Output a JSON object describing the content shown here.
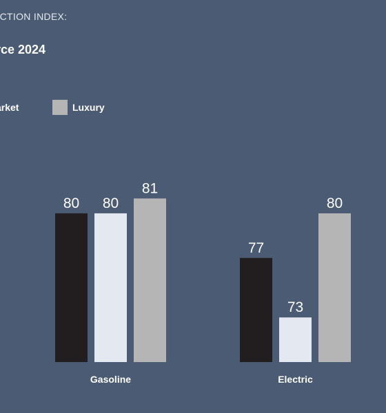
{
  "chart_data": {
    "type": "bar",
    "title_lines": [
      "ACTION INDEX:",
      "rce 2024"
    ],
    "categories": [
      "Gasoline",
      "Electric"
    ],
    "series": [
      {
        "name": "arket",
        "color": "#221e20",
        "values": [
          80,
          77
        ]
      },
      {
        "name": "",
        "color": "#e4e8f0",
        "values": [
          80,
          73
        ]
      },
      {
        "name": "Luxury",
        "color": "#b5b5b5",
        "values": [
          81,
          80
        ]
      }
    ],
    "value_labels": [
      [
        "80",
        "77"
      ],
      [
        "80",
        "73"
      ],
      [
        "81",
        "80"
      ]
    ],
    "ylim": [
      70,
      81.2
    ],
    "grid": false,
    "legend_position": "top-left"
  }
}
